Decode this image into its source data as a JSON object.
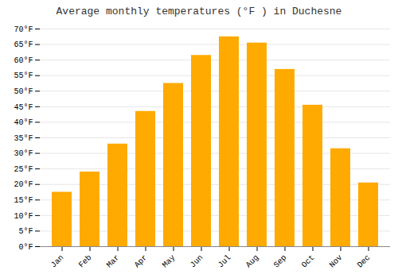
{
  "chart_data": {
    "type": "bar",
    "title": "Average monthly temperatures (°F ) in Duchesne",
    "categories": [
      "Jan",
      "Feb",
      "Mar",
      "Apr",
      "May",
      "Jun",
      "Jul",
      "Aug",
      "Sep",
      "Oct",
      "Nov",
      "Dec"
    ],
    "values": [
      17.5,
      24.0,
      33.0,
      43.5,
      52.5,
      61.5,
      67.5,
      65.5,
      57.0,
      45.5,
      31.5,
      20.5
    ],
    "color": "#FFAA00",
    "ylim": [
      0,
      70
    ],
    "yticks": [
      {
        "value": 0,
        "label": "0°F"
      },
      {
        "value": 5,
        "label": "5°F"
      },
      {
        "value": 10,
        "label": "10°F"
      },
      {
        "value": 15,
        "label": "15°F"
      },
      {
        "value": 20,
        "label": "20°F"
      },
      {
        "value": 25,
        "label": "25°F"
      },
      {
        "value": 30,
        "label": "30°F"
      },
      {
        "value": 35,
        "label": "35°F"
      },
      {
        "value": 40,
        "label": "40°F"
      },
      {
        "value": 45,
        "label": "45°F"
      },
      {
        "value": 50,
        "label": "50°F"
      },
      {
        "value": 55,
        "label": "55°F"
      },
      {
        "value": 60,
        "label": "60°F"
      },
      {
        "value": 65,
        "label": "65°F"
      },
      {
        "value": 70,
        "label": "70°F"
      }
    ],
    "grid": true
  }
}
